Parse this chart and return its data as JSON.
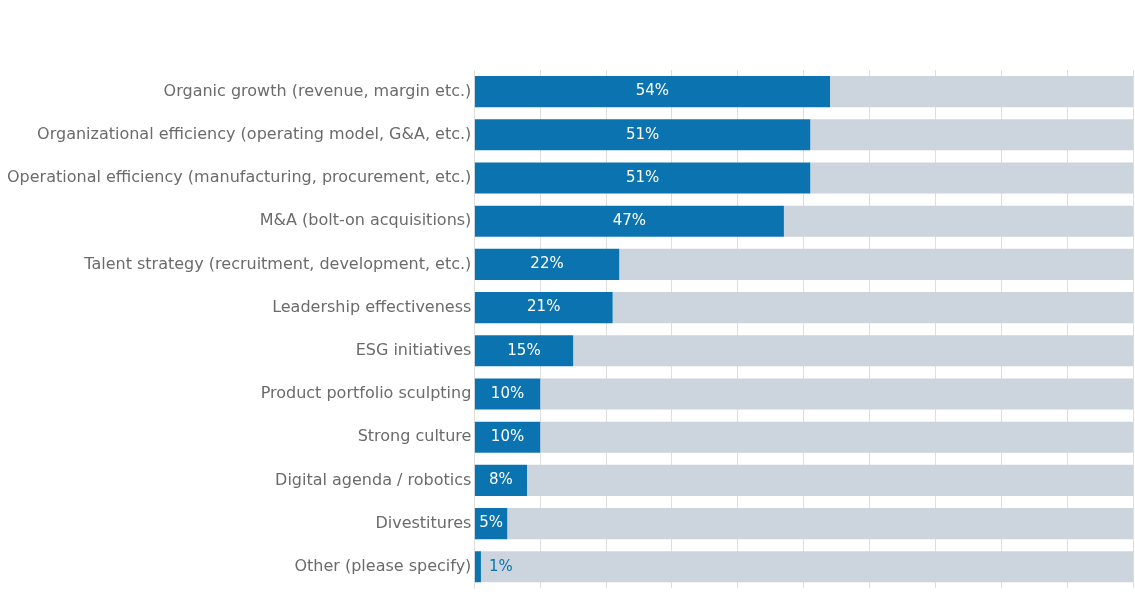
{
  "chart_data": {
    "type": "bar",
    "orientation": "horizontal",
    "stacked": true,
    "categories": [
      "Organic growth (revenue, margin etc.)",
      "Organizational efficiency (operating model, G&A, etc.)",
      "Operational efficiency (manufacturing, procurement, etc.)",
      "M&A (bolt-on acquisitions)",
      "Talent strategy (recruitment, development, etc.)",
      "Leadership effectiveness",
      "ESG initiatives",
      "Product portfolio sculpting",
      "Strong culture",
      "Digital agenda / robotics",
      "Divestitures",
      "Other (please specify)"
    ],
    "series": [
      {
        "color": "#0b74b0",
        "values": [
          54,
          51,
          51,
          47,
          22,
          21,
          15,
          10,
          10,
          8,
          5,
          1
        ],
        "value_labels": [
          "54%",
          "51%",
          "51%",
          "47%",
          "22%",
          "21%",
          "15%",
          "10%",
          "10%",
          "8%",
          "5%",
          "1%"
        ]
      },
      {
        "color": "#ccd4dd",
        "values": [
          46,
          49,
          49,
          53,
          78,
          79,
          85,
          90,
          90,
          92,
          95,
          99
        ]
      }
    ],
    "xlim": [
      0,
      100
    ],
    "xticks": [
      {
        "value": 0,
        "label": null
      },
      {
        "value": 10,
        "label": null
      },
      {
        "value": 20,
        "label": null
      },
      {
        "value": 30,
        "label": null
      },
      {
        "value": 40,
        "label": null
      },
      {
        "value": 50,
        "label": null
      },
      {
        "value": 60,
        "label": null
      },
      {
        "value": 70,
        "label": null
      },
      {
        "value": 80,
        "label": null
      },
      {
        "value": 90,
        "label": null
      },
      {
        "value": 100,
        "label": null
      }
    ],
    "tick_labels": "y",
    "grid": "x",
    "legend": false
  }
}
